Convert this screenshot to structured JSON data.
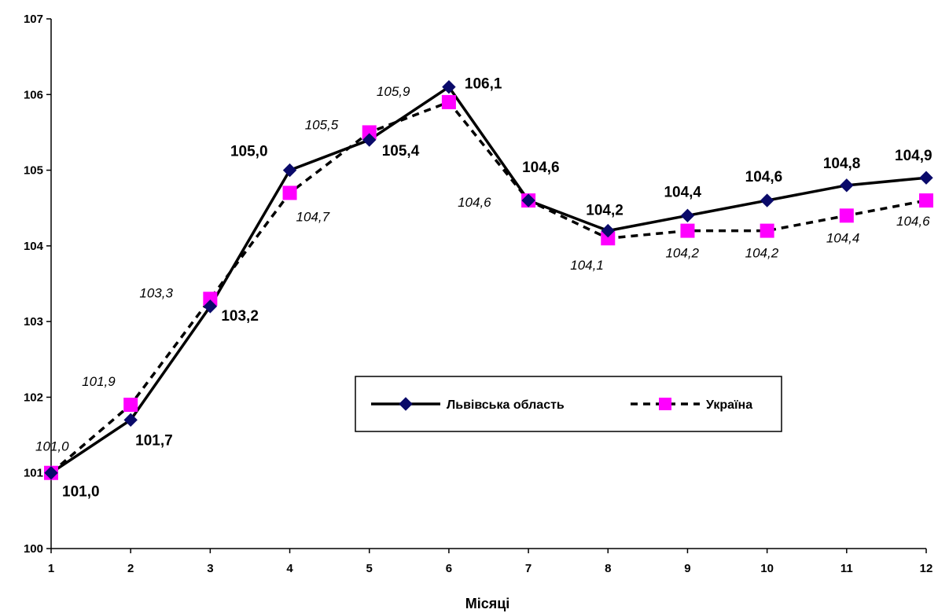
{
  "chart_data": {
    "type": "line",
    "title": "",
    "xlabel": "Місяці",
    "ylabel": "",
    "x": [
      1,
      2,
      3,
      4,
      5,
      6,
      7,
      8,
      9,
      10,
      11,
      12
    ],
    "ylim": [
      100,
      107
    ],
    "yticks": [
      100,
      101,
      102,
      103,
      104,
      105,
      106,
      107
    ],
    "grid": false,
    "legend_position": "center",
    "series": [
      {
        "name": "Львівська область",
        "values": [
          101.0,
          101.7,
          103.2,
          105.0,
          105.4,
          106.1,
          104.6,
          104.2,
          104.4,
          104.6,
          104.8,
          104.9
        ],
        "labels": [
          "101,0",
          "101,7",
          "103,2",
          "105,0",
          "105,4",
          "106,1",
          "104,6",
          "104,2",
          "104,4",
          "104,6",
          "104,8",
          "104,9"
        ],
        "color": "#0a0a6a",
        "line_color": "#000000",
        "line_style": "solid",
        "marker": "diamond"
      },
      {
        "name": "Україна",
        "values": [
          101.0,
          101.9,
          103.3,
          104.7,
          105.5,
          105.9,
          104.6,
          104.1,
          104.2,
          104.2,
          104.4,
          104.6
        ],
        "labels": [
          "101,0",
          "101,9",
          "103,3",
          "104,7",
          "105,5",
          "105,9",
          "104,6",
          "104,1",
          "104,2",
          "104,2",
          "104,4",
          "104,6"
        ],
        "color": "#ff00ff",
        "line_color": "#000000",
        "line_style": "dashed",
        "marker": "square"
      }
    ]
  }
}
